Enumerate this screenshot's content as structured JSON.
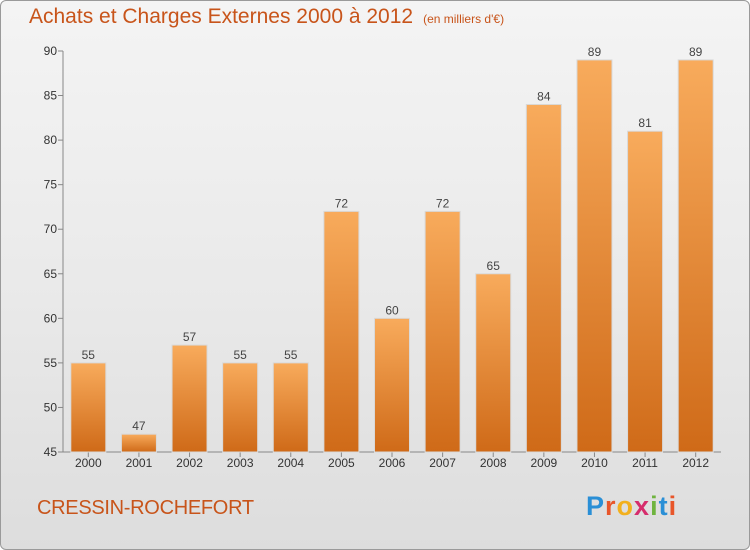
{
  "header": {
    "title": "Achats et Charges Externes 2000 à 2012",
    "subtitle": "(en milliers d'€)"
  },
  "footer": {
    "commune": "CRESSIN-ROCHEFORT",
    "logo_letters": [
      "P",
      "r",
      "o",
      "x",
      "i",
      "t",
      "i"
    ],
    "logo_colors": [
      "#2a8fd6",
      "#e8562a",
      "#f2b01e",
      "#d62d6c",
      "#6fb43f",
      "#2a8fd6",
      "#e8562a"
    ]
  },
  "colors": {
    "bar_top": "#f8ab5c",
    "bar_bottom": "#cf6a18",
    "title": "#c8541a"
  },
  "chart_data": {
    "type": "bar",
    "title": "Achats et Charges Externes 2000 à 2012",
    "subtitle": "(en milliers d'€)",
    "categories": [
      "2000",
      "2001",
      "2002",
      "2003",
      "2004",
      "2005",
      "2006",
      "2007",
      "2008",
      "2009",
      "2010",
      "2011",
      "2012"
    ],
    "values": [
      55,
      47,
      57,
      55,
      55,
      72,
      60,
      72,
      65,
      84,
      89,
      81,
      89
    ],
    "ylim": [
      45,
      90
    ],
    "yticks": [
      45,
      50,
      55,
      60,
      65,
      70,
      75,
      80,
      85,
      90
    ],
    "grid": false,
    "data_labels": true
  }
}
